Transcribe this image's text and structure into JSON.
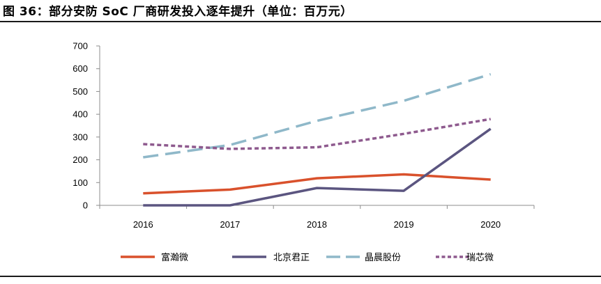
{
  "title": "图 36：部分安防 SoC 厂商研发投入逐年提升（单位：百万元）",
  "chart_data": {
    "type": "line",
    "title": "",
    "xlabel": "",
    "ylabel": "",
    "categories": [
      "2016",
      "2017",
      "2018",
      "2019",
      "2020"
    ],
    "ylim": [
      0,
      700
    ],
    "yticks": [
      0,
      100,
      200,
      300,
      400,
      500,
      600,
      700
    ],
    "grid": false,
    "legend_position": "bottom",
    "series": [
      {
        "name": "富瀚微",
        "values": [
          53,
          69,
          119,
          136,
          113
        ],
        "color": "#d9512c",
        "style": "solid"
      },
      {
        "name": "北京君正",
        "values": [
          0,
          0,
          76,
          64,
          336
        ],
        "color": "#5b5580",
        "style": "solid"
      },
      {
        "name": "晶晨股份",
        "values": [
          211,
          265,
          371,
          459,
          576
        ],
        "color": "#8fb8c9",
        "style": "long-dash"
      },
      {
        "name": "瑞芯微",
        "values": [
          269,
          248,
          255,
          314,
          379
        ],
        "color": "#8e5a8e",
        "style": "short-dash"
      }
    ]
  }
}
